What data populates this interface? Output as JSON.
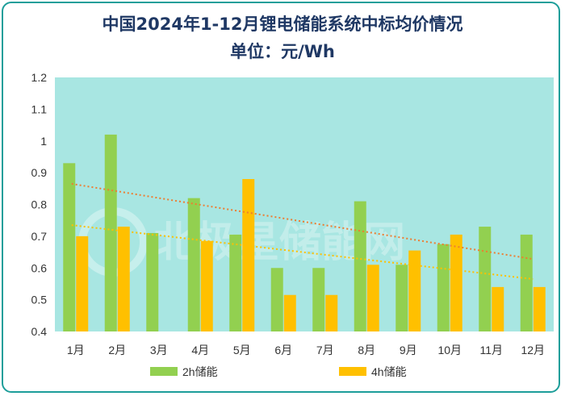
{
  "title": "中国2024年1-12月锂电储能系统中标均价情况",
  "subtitle": "单位：元/Wh",
  "chart_data": {
    "type": "bar",
    "categories": [
      "1月",
      "2月",
      "3月",
      "4月",
      "5月",
      "6月",
      "7月",
      "8月",
      "9月",
      "10月",
      "11月",
      "12月"
    ],
    "series": [
      {
        "name": "2h储能",
        "color": "#92d050",
        "values": [
          0.93,
          1.02,
          0.71,
          0.82,
          0.705,
          0.6,
          0.6,
          0.81,
          0.61,
          0.675,
          0.73,
          0.705
        ]
      },
      {
        "name": "4h储能",
        "color": "#ffc000",
        "values": [
          0.7,
          0.73,
          null,
          0.685,
          0.88,
          0.515,
          0.515,
          0.61,
          0.655,
          0.705,
          0.54,
          0.54
        ]
      }
    ],
    "trendlines": [
      {
        "series": "2h储能",
        "color": "#ed7d31",
        "start": 0.865,
        "end": 0.628
      },
      {
        "series": "4h储能",
        "color": "#ffc000",
        "start": 0.735,
        "end": 0.565
      }
    ],
    "ylim": [
      0.4,
      1.2
    ],
    "yticks": [
      "0.4",
      "0.5",
      "0.6",
      "0.7",
      "0.8",
      "0.9",
      "1",
      "1.1",
      "1.2"
    ],
    "grid": false,
    "legend_position": "bottom",
    "plot_background": "#a8e6e2",
    "watermark": "北极星储能网"
  }
}
